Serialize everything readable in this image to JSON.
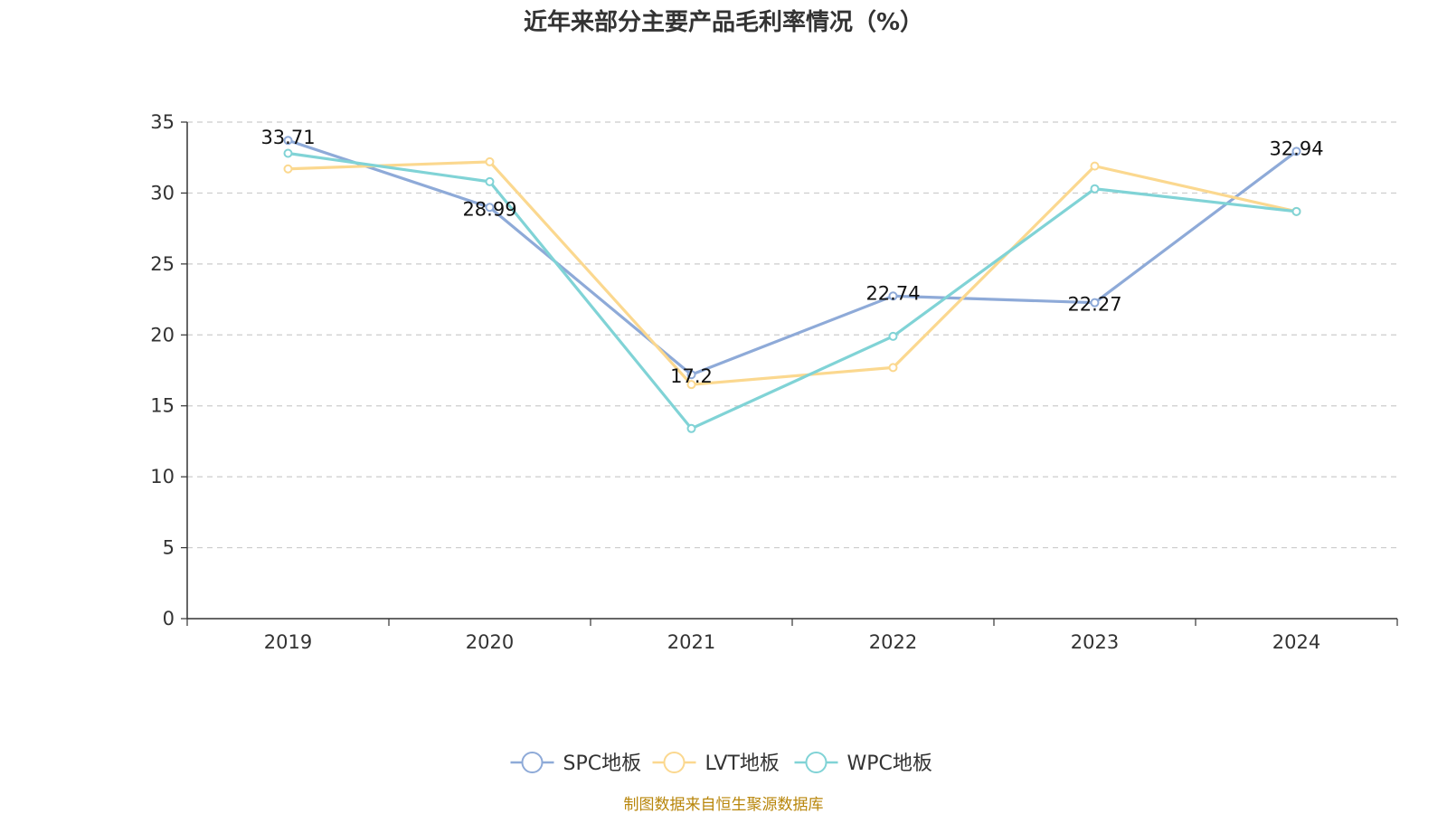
{
  "chart_data": {
    "type": "line",
    "title": "近年来部分主要产品毛利率情况（%）",
    "categories": [
      "2019",
      "2020",
      "2021",
      "2022",
      "2023",
      "2024"
    ],
    "ylim": [
      0,
      35
    ],
    "yticks": [
      0,
      5,
      10,
      15,
      20,
      25,
      30,
      35
    ],
    "grid": true,
    "legend_position": "bottom",
    "series": [
      {
        "name": "SPC地板",
        "color": "#8eaad8",
        "values": [
          33.71,
          28.99,
          17.2,
          22.74,
          22.27,
          32.94
        ],
        "labels": [
          "33.71",
          "28.99",
          "17.2",
          "22.74",
          "22.27",
          "32.94"
        ]
      },
      {
        "name": "LVT地板",
        "color": "#fbd88f",
        "values": [
          31.7,
          32.2,
          16.5,
          17.7,
          31.9,
          28.7
        ]
      },
      {
        "name": "WPC地板",
        "color": "#80d3d6",
        "values": [
          32.8,
          30.8,
          13.4,
          19.9,
          30.3,
          28.7
        ]
      }
    ],
    "source": "制图数据来自恒生聚源数据库"
  }
}
